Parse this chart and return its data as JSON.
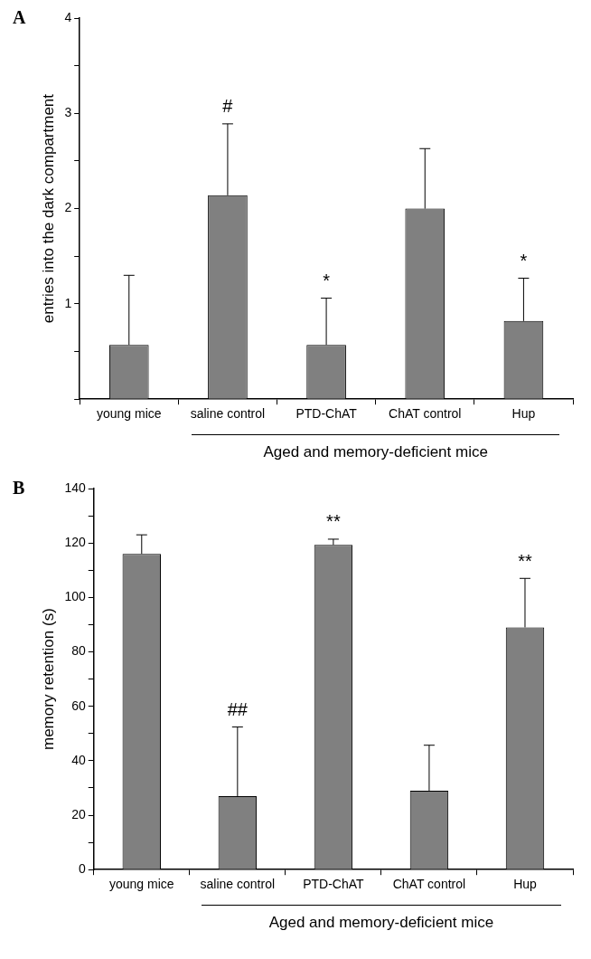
{
  "chart_data": [
    {
      "type": "bar",
      "title": "A",
      "ylabel": "entries into the dark compartment",
      "categories": [
        "young mice",
        "saline control",
        "PTD-ChAT",
        "ChAT control",
        "Hup"
      ],
      "values": [
        0.57,
        2.14,
        0.57,
        2.0,
        0.82
      ],
      "errors": [
        [
          0.57,
          1.3
        ],
        [
          2.14,
          2.89
        ],
        [
          0.57,
          1.06
        ],
        [
          2.0,
          2.63
        ],
        [
          0.82,
          1.27
        ]
      ],
      "color": "#808080",
      "ylim": [
        0,
        4
      ],
      "yticks": [
        {
          "value": 0,
          "label": null
        },
        {
          "value": 0.5,
          "label": null
        },
        1,
        {
          "value": 1.5,
          "label": null
        },
        2,
        {
          "value": 2.5,
          "label": null
        },
        3,
        {
          "value": 3.5,
          "label": null
        },
        4
      ],
      "grid": false,
      "legend": false,
      "annotations": [
        {
          "text": "#",
          "x": "saline control",
          "y": 2.89
        },
        {
          "text": "*",
          "x": "PTD-ChAT",
          "y": 1.06
        },
        {
          "text": "*",
          "x": "Hup",
          "y": 1.27
        },
        "Aged and memory-deficient mice"
      ]
    },
    {
      "type": "bar",
      "title": "B",
      "ylabel": "memory retention (s)",
      "categories": [
        "young mice",
        "saline control",
        "PTD-ChAT",
        "ChAT control",
        "Hup"
      ],
      "values": [
        116,
        27,
        119.3,
        29,
        89
      ],
      "errors": [
        [
          116,
          123
        ],
        [
          27,
          52.4
        ],
        [
          119.3,
          121.4
        ],
        [
          29,
          45.7
        ],
        [
          89,
          107
        ]
      ],
      "color": "#808080",
      "ylim": [
        0,
        140
      ],
      "yticks": [
        0,
        {
          "value": 10,
          "label": null
        },
        20,
        {
          "value": 30,
          "label": null
        },
        40,
        {
          "value": 50,
          "label": null
        },
        60,
        {
          "value": 70,
          "label": null
        },
        80,
        {
          "value": 90,
          "label": null
        },
        100,
        {
          "value": 110,
          "label": null
        },
        120,
        {
          "value": 130,
          "label": null
        },
        140
      ],
      "grid": false,
      "legend": false,
      "annotations": [
        {
          "text": "##",
          "x": "saline control",
          "y": 52.4
        },
        {
          "text": "**",
          "x": "PTD-ChAT",
          "y": 121.4
        },
        {
          "text": "**",
          "x": "Hup",
          "y": 107
        },
        "Aged and memory-deficient mice"
      ]
    }
  ]
}
